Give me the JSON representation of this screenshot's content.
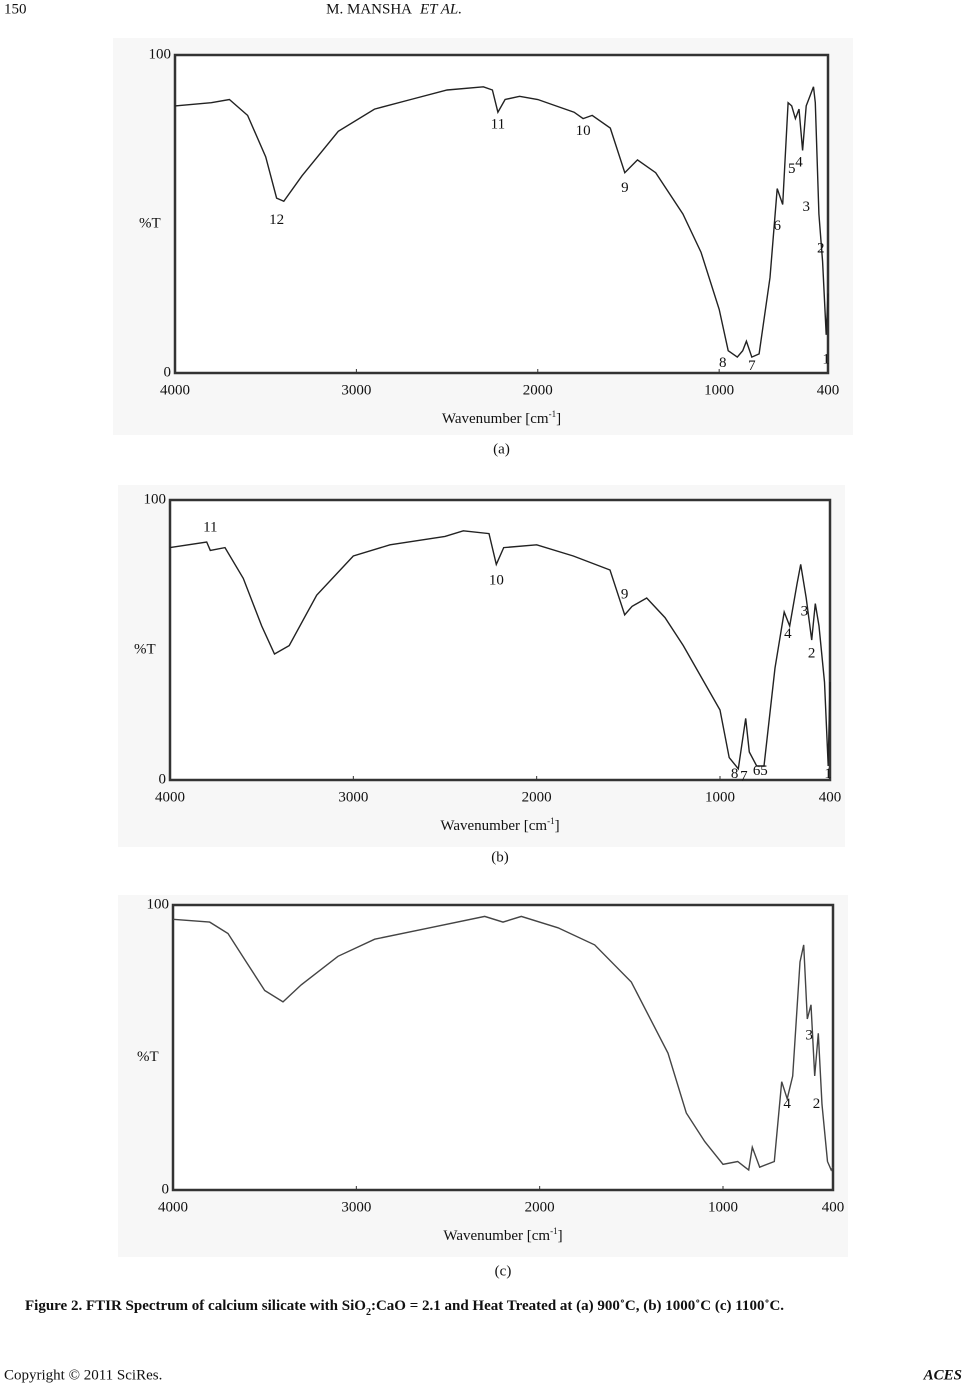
{
  "header": {
    "page": "150",
    "author": "M. MANSHA",
    "etal": "ET   AL."
  },
  "caption": {
    "start": "Figure 2. FTIR Spectrum of calcium silicate with SiO",
    "sub": "2",
    "end": ":CaO = 2.1 and Heat Treated at (a) 900˚C, (b) 1000˚C (c) 1100˚C."
  },
  "footer": {
    "copyright": "Copyright  ©  2011  SciRes.",
    "journal": "ACES"
  },
  "chart_data": [
    {
      "type": "line",
      "label": "(a)",
      "y_label": "%T",
      "x_label": {
        "text": "Wavenumber [cm",
        "sup": "-1",
        "end": "]"
      },
      "xlim": [
        4000,
        400
      ],
      "xticks": [
        4000,
        3000,
        2000,
        1000,
        400
      ],
      "ylim": [
        0,
        100
      ],
      "yticks": [
        0,
        100
      ],
      "color": "#222222",
      "x": [
        4000,
        3800,
        3700,
        3600,
        3500,
        3440,
        3400,
        3300,
        3100,
        2900,
        2700,
        2500,
        2300,
        2250,
        2220,
        2180,
        2100,
        2000,
        1900,
        1800,
        1750,
        1700,
        1600,
        1520,
        1450,
        1350,
        1200,
        1100,
        1000,
        950,
        900,
        870,
        850,
        820,
        780,
        720,
        680,
        650,
        620,
        600,
        580,
        560,
        540,
        520,
        500,
        480,
        470,
        450,
        430,
        410,
        400
      ],
      "values": [
        84,
        85,
        86,
        81,
        68,
        55,
        54,
        62,
        76,
        83,
        86,
        89,
        90,
        89,
        82,
        86,
        87,
        86,
        84,
        82,
        80,
        81,
        77,
        63,
        67,
        63,
        50,
        38,
        20,
        7,
        5,
        7,
        10,
        5,
        6,
        30,
        58,
        53,
        85,
        84,
        80,
        83,
        70,
        84,
        87,
        90,
        85,
        50,
        35,
        12,
        25
      ],
      "annotations": [
        {
          "text": "12",
          "x": 3440,
          "y": 48
        },
        {
          "text": "11",
          "x": 2220,
          "y": 78
        },
        {
          "text": "10",
          "x": 1750,
          "y": 76
        },
        {
          "text": "9",
          "x": 1520,
          "y": 58
        },
        {
          "text": "8",
          "x": 980,
          "y": 3
        },
        {
          "text": "7",
          "x": 820,
          "y": 2
        },
        {
          "text": "6",
          "x": 680,
          "y": 46
        },
        {
          "text": "5",
          "x": 600,
          "y": 64
        },
        {
          "text": "4",
          "x": 560,
          "y": 66
        },
        {
          "text": "3",
          "x": 520,
          "y": 52
        },
        {
          "text": "2",
          "x": 440,
          "y": 39
        },
        {
          "text": "1",
          "x": 410,
          "y": 4
        }
      ]
    },
    {
      "type": "line",
      "label": "(b)",
      "y_label": "%T",
      "x_label": {
        "text": "Wavenumber [cm",
        "sup": "-1",
        "end": "]"
      },
      "xlim": [
        4000,
        400
      ],
      "xticks": [
        4000,
        3000,
        2000,
        1000,
        400
      ],
      "ylim": [
        0,
        100
      ],
      "yticks": [
        0,
        100
      ],
      "color": "#222222",
      "x": [
        4000,
        3800,
        3780,
        3700,
        3600,
        3500,
        3430,
        3350,
        3200,
        3000,
        2800,
        2500,
        2400,
        2260,
        2220,
        2180,
        2000,
        1800,
        1600,
        1520,
        1480,
        1400,
        1300,
        1200,
        1000,
        950,
        900,
        860,
        840,
        800,
        760,
        700,
        650,
        620,
        580,
        560,
        530,
        500,
        480,
        460,
        430,
        410,
        400
      ],
      "values": [
        83,
        85,
        82,
        83,
        72,
        55,
        45,
        48,
        66,
        80,
        84,
        87,
        89,
        88,
        77,
        83,
        84,
        80,
        75,
        59,
        62,
        65,
        58,
        48,
        25,
        8,
        4,
        22,
        10,
        5,
        5,
        40,
        60,
        55,
        70,
        77,
        65,
        50,
        63,
        55,
        35,
        5,
        35
      ],
      "annotations": [
        {
          "text": "11",
          "x": 3780,
          "y": 90
        },
        {
          "text": "10",
          "x": 2220,
          "y": 71
        },
        {
          "text": "9",
          "x": 1520,
          "y": 66
        },
        {
          "text": "8",
          "x": 920,
          "y": 2
        },
        {
          "text": "7",
          "x": 870,
          "y": 1
        },
        {
          "text": "6",
          "x": 800,
          "y": 3
        },
        {
          "text": "5",
          "x": 760,
          "y": 3
        },
        {
          "text": "4",
          "x": 630,
          "y": 52
        },
        {
          "text": "3",
          "x": 540,
          "y": 60
        },
        {
          "text": "2",
          "x": 500,
          "y": 45
        },
        {
          "text": "1",
          "x": 410,
          "y": 2
        }
      ]
    },
    {
      "type": "line",
      "label": "(c)",
      "y_label": "%T",
      "x_label": {
        "text": "Wavenumber [cm",
        "sup": "-1",
        "end": "]"
      },
      "xlim": [
        4000,
        400
      ],
      "xticks": [
        4000,
        3000,
        2000,
        1000,
        400
      ],
      "ylim": [
        0,
        100
      ],
      "yticks": [
        0,
        100
      ],
      "color": "#444444",
      "x": [
        4000,
        3800,
        3700,
        3600,
        3500,
        3400,
        3300,
        3100,
        2900,
        2600,
        2300,
        2200,
        2100,
        1900,
        1700,
        1500,
        1300,
        1200,
        1100,
        1000,
        920,
        880,
        860,
        840,
        800,
        720,
        680,
        650,
        620,
        580,
        560,
        540,
        520,
        500,
        480,
        460,
        430,
        410,
        400
      ],
      "values": [
        95,
        94,
        90,
        80,
        70,
        66,
        72,
        82,
        88,
        92,
        96,
        94,
        96,
        92,
        86,
        73,
        48,
        27,
        17,
        9,
        10,
        8,
        7,
        15,
        8,
        10,
        38,
        32,
        40,
        80,
        86,
        60,
        65,
        40,
        55,
        30,
        10,
        7,
        8
      ],
      "annotations": [
        {
          "text": "4",
          "x": 650,
          "y": 30
        },
        {
          "text": "3",
          "x": 530,
          "y": 54
        },
        {
          "text": "2",
          "x": 490,
          "y": 30
        }
      ]
    }
  ]
}
